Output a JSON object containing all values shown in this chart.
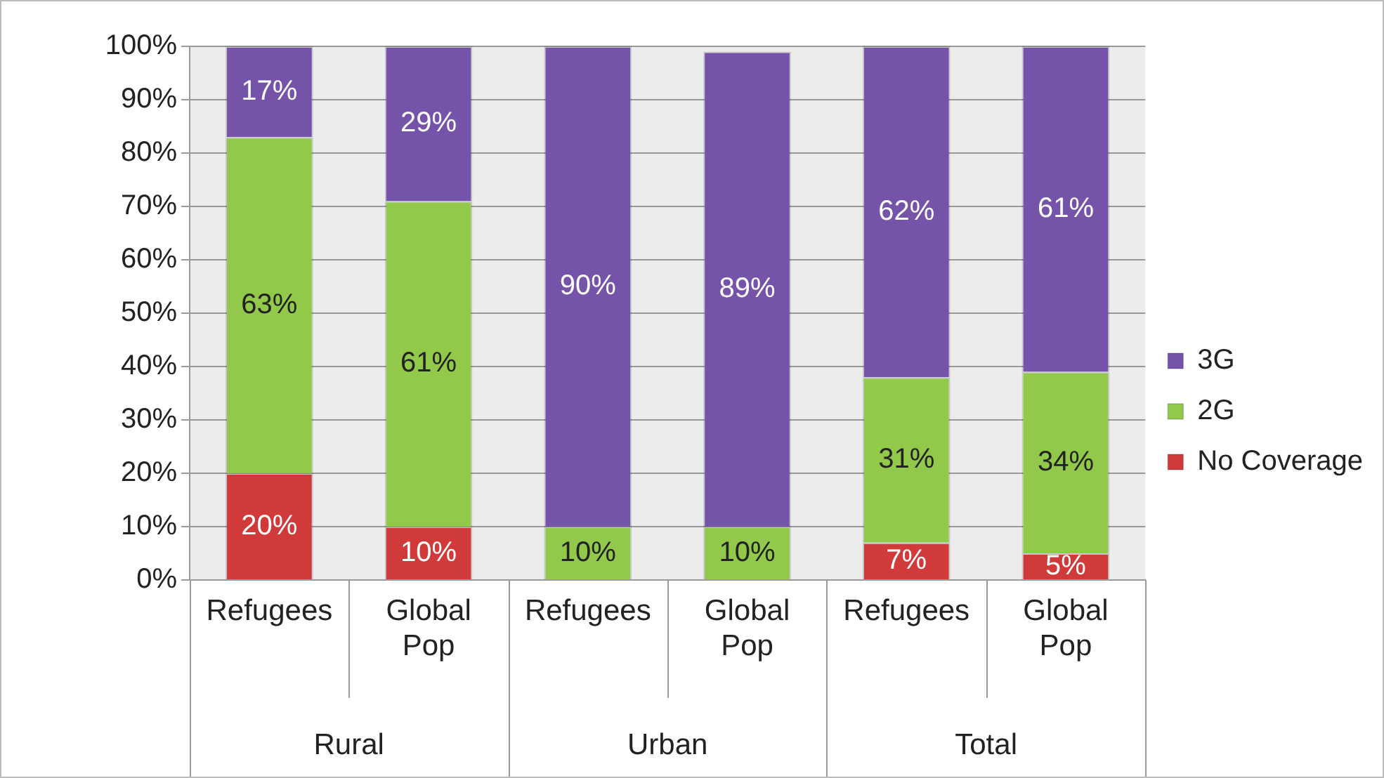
{
  "chart_data": {
    "type": "bar",
    "stacked": true,
    "categories": [
      "Refugees",
      "Global Pop",
      "Refugees",
      "Global Pop",
      "Refugees",
      "Global Pop"
    ],
    "series": [
      {
        "name": "No Coverage",
        "color": "#d03a3a",
        "values": [
          20,
          10,
          0,
          0,
          7,
          5
        ],
        "value_labels": [
          "20%",
          "10%",
          null,
          null,
          "7%",
          "5%"
        ]
      },
      {
        "name": "2G",
        "color": "#92c94a",
        "values": [
          63,
          61,
          10,
          10,
          31,
          34
        ],
        "value_labels": [
          "63%",
          "61%",
          "10%",
          "10%",
          "31%",
          "34%"
        ]
      },
      {
        "name": "3G",
        "color": "#7453a8",
        "values": [
          17,
          29,
          90,
          89,
          62,
          61
        ],
        "value_labels": [
          "17%",
          "29%",
          "90%",
          "89%",
          "62%",
          "61%"
        ]
      }
    ],
    "annotations": [
      "Rural",
      "Urban",
      "Total"
    ],
    "ylim": [
      0,
      100
    ],
    "yticks": [
      {
        "value": 0,
        "label": "0%"
      },
      {
        "value": 10,
        "label": "10%"
      },
      {
        "value": 20,
        "label": "20%"
      },
      {
        "value": 30,
        "label": "30%"
      },
      {
        "value": 40,
        "label": "40%"
      },
      {
        "value": 50,
        "label": "50%"
      },
      {
        "value": 60,
        "label": "60%"
      },
      {
        "value": 70,
        "label": "70%"
      },
      {
        "value": 80,
        "label": "80%"
      },
      {
        "value": 90,
        "label": "90%"
      },
      {
        "value": 100,
        "label": "100%"
      }
    ],
    "grid": "y",
    "legend": "right"
  }
}
